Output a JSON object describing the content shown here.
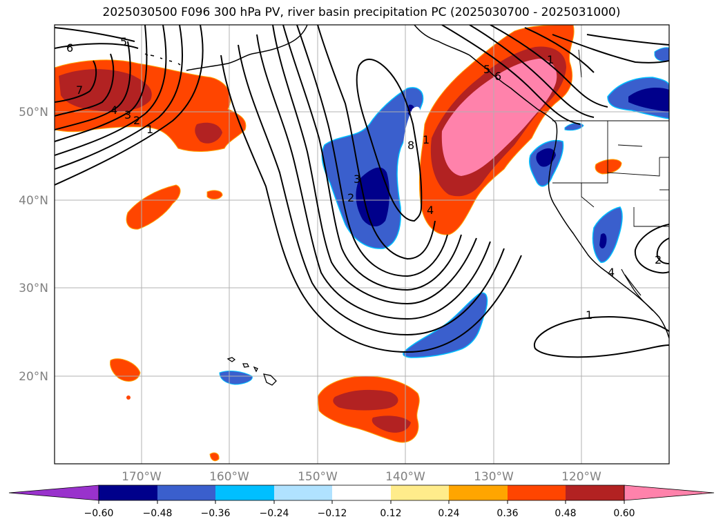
{
  "title": "2025030500 F096 300 hPa PV, river basin precipitation PC (2025030700 - 2025031000)",
  "lat_labels": [
    "50°N",
    "40°N",
    "30°N",
    "20°N"
  ],
  "lon_labels": [
    "170°W",
    "160°W",
    "150°W",
    "140°W",
    "130°W",
    "120°W"
  ],
  "colorbar": {
    "ticks": [
      "−0.60",
      "−0.48",
      "−0.36",
      "−0.24",
      "−0.12",
      "0.12",
      "0.24",
      "0.36",
      "0.48",
      "0.60"
    ],
    "colors": [
      "#9932cc",
      "#00008b",
      "#3a5fcd",
      "#00bfff",
      "#b0e2ff",
      "#ffffff",
      "#ffec8b",
      "#ffa500",
      "#ff4500",
      "#b22222",
      "#ff82ab"
    ]
  },
  "contour_labels": [
    "6",
    "5",
    "7",
    "4",
    "3",
    "2",
    "1",
    "3",
    "2",
    "8",
    "1",
    "4",
    "5",
    "6",
    "1",
    "1",
    "2",
    "4"
  ],
  "colors": {
    "strong_positive": "#ff82ab",
    "positive_high": "#b22222",
    "positive": "#ff4500",
    "negative": "#3a5fcd",
    "strong_negative": "#00008b",
    "light_negative": "#00bfff"
  }
}
